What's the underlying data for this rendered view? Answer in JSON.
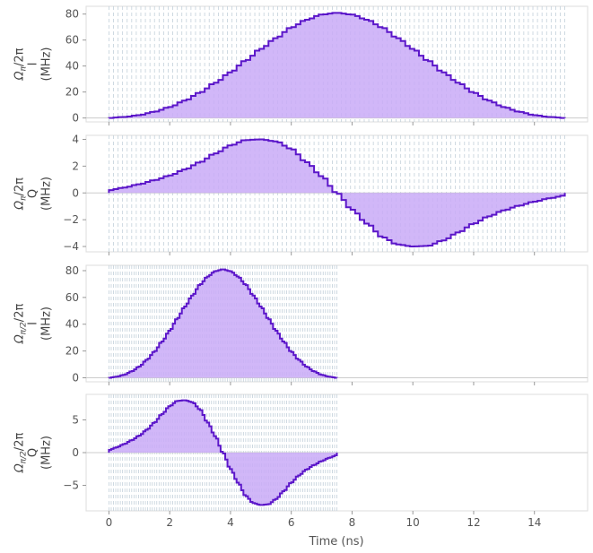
{
  "chart_data": {
    "type": "area",
    "xlabel": "Time (ns)",
    "xlim": [
      -0.75,
      15.75
    ],
    "xticks": [
      0,
      2,
      4,
      6,
      8,
      10,
      12,
      14
    ],
    "accent_color": "#5b16c9",
    "fill_color": "#c9aaf7",
    "grid_color": "#c3d0da",
    "panels": [
      {
        "ylabel_sym": "Ω",
        "ylabel_sub": "π",
        "ylabel_tail": "/2π",
        "ylabel_line2": "I",
        "ylabel_line3": "(MHz)",
        "ylim": [
          -3,
          86
        ],
        "yticks": [
          0,
          20,
          40,
          60,
          80
        ],
        "step": 0.15,
        "x": [
          0.0,
          0.5,
          1.0,
          1.5,
          2.0,
          2.5,
          3.0,
          3.5,
          4.0,
          4.5,
          5.0,
          5.5,
          6.0,
          6.5,
          7.0,
          7.5,
          8.0,
          8.5,
          9.0,
          9.5,
          10.0,
          10.5,
          11.0,
          11.5,
          12.0,
          12.5,
          13.0,
          13.5,
          14.0,
          14.5,
          15.0
        ],
        "y": [
          0,
          0.8,
          2.2,
          4.8,
          8.4,
          13.4,
          19.6,
          27.1,
          35.2,
          44.2,
          53.2,
          61.5,
          69.6,
          75.6,
          79.6,
          81.0,
          79.6,
          75.6,
          69.6,
          61.5,
          53.2,
          44.2,
          35.2,
          27.1,
          19.6,
          13.4,
          8.4,
          4.8,
          2.2,
          0.8,
          0
        ]
      },
      {
        "ylabel_sym": "Ω",
        "ylabel_sub": "π",
        "ylabel_tail": "/2π",
        "ylabel_line2": "Q",
        "ylabel_line3": "(MHz)",
        "ylim": [
          -4.4,
          4.3
        ],
        "yticks": [
          -4,
          -2,
          0,
          2,
          4
        ],
        "step": 0.15,
        "x": [
          0.0,
          0.5,
          1.0,
          1.5,
          2.0,
          2.5,
          3.0,
          3.5,
          4.0,
          4.5,
          5.0,
          5.5,
          6.0,
          6.5,
          7.0,
          7.5,
          8.0,
          8.5,
          9.0,
          9.5,
          10.0,
          10.5,
          11.0,
          11.5,
          12.0,
          12.5,
          13.0,
          13.5,
          14.0,
          14.5,
          15.0
        ],
        "y": [
          0.2,
          0.4,
          0.65,
          0.95,
          1.3,
          1.75,
          2.3,
          2.95,
          3.55,
          3.95,
          4.0,
          3.85,
          3.3,
          2.3,
          1.25,
          0,
          -1.25,
          -2.3,
          -3.3,
          -3.85,
          -4.0,
          -3.95,
          -3.55,
          -2.95,
          -2.3,
          -1.75,
          -1.3,
          -0.95,
          -0.65,
          -0.4,
          -0.2
        ]
      },
      {
        "ylabel_sym": "Ω",
        "ylabel_sub": "π/2",
        "ylabel_tail": "/2π",
        "ylabel_line2": "I",
        "ylabel_line3": "(MHz)",
        "ylim": [
          -3,
          84
        ],
        "yticks": [
          0,
          20,
          40,
          60,
          80
        ],
        "step": 0.075,
        "x": [
          0.0,
          0.25,
          0.5,
          0.75,
          1.0,
          1.25,
          1.5,
          1.75,
          2.0,
          2.25,
          2.5,
          2.75,
          3.0,
          3.25,
          3.5,
          3.75,
          4.0,
          4.25,
          4.5,
          4.75,
          5.0,
          5.25,
          5.5,
          5.75,
          6.0,
          6.25,
          6.5,
          6.75,
          7.0,
          7.25,
          7.5
        ],
        "y": [
          0,
          0.8,
          2.2,
          4.8,
          8.4,
          13.4,
          19.6,
          27.1,
          35.2,
          44.2,
          53.2,
          61.5,
          69.6,
          75.6,
          79.6,
          81.0,
          79.6,
          75.6,
          69.6,
          61.5,
          53.2,
          44.2,
          35.2,
          27.1,
          19.6,
          13.4,
          8.4,
          4.8,
          2.2,
          0.8,
          0
        ]
      },
      {
        "ylabel_sym": "Ω",
        "ylabel_sub": "π/2",
        "ylabel_tail": "/2π",
        "ylabel_line2": "Q",
        "ylabel_line3": "(MHz)",
        "ylim": [
          -8.9,
          8.9
        ],
        "yticks": [
          -5,
          0,
          5
        ],
        "step": 0.075,
        "x": [
          0.0,
          0.25,
          0.5,
          0.75,
          1.0,
          1.25,
          1.5,
          1.75,
          2.0,
          2.25,
          2.5,
          2.75,
          3.0,
          3.25,
          3.5,
          3.75,
          4.0,
          4.25,
          4.5,
          4.75,
          5.0,
          5.25,
          5.5,
          5.75,
          6.0,
          6.25,
          6.5,
          6.75,
          7.0,
          7.25,
          7.5
        ],
        "y": [
          0.4,
          0.8,
          1.3,
          1.9,
          2.6,
          3.5,
          4.6,
          5.9,
          7.1,
          7.9,
          8.0,
          7.7,
          6.6,
          4.6,
          2.5,
          0,
          -2.5,
          -4.6,
          -6.6,
          -7.7,
          -8.0,
          -7.9,
          -7.1,
          -5.9,
          -4.6,
          -3.5,
          -2.6,
          -1.9,
          -1.3,
          -0.8,
          -0.4
        ]
      }
    ]
  }
}
